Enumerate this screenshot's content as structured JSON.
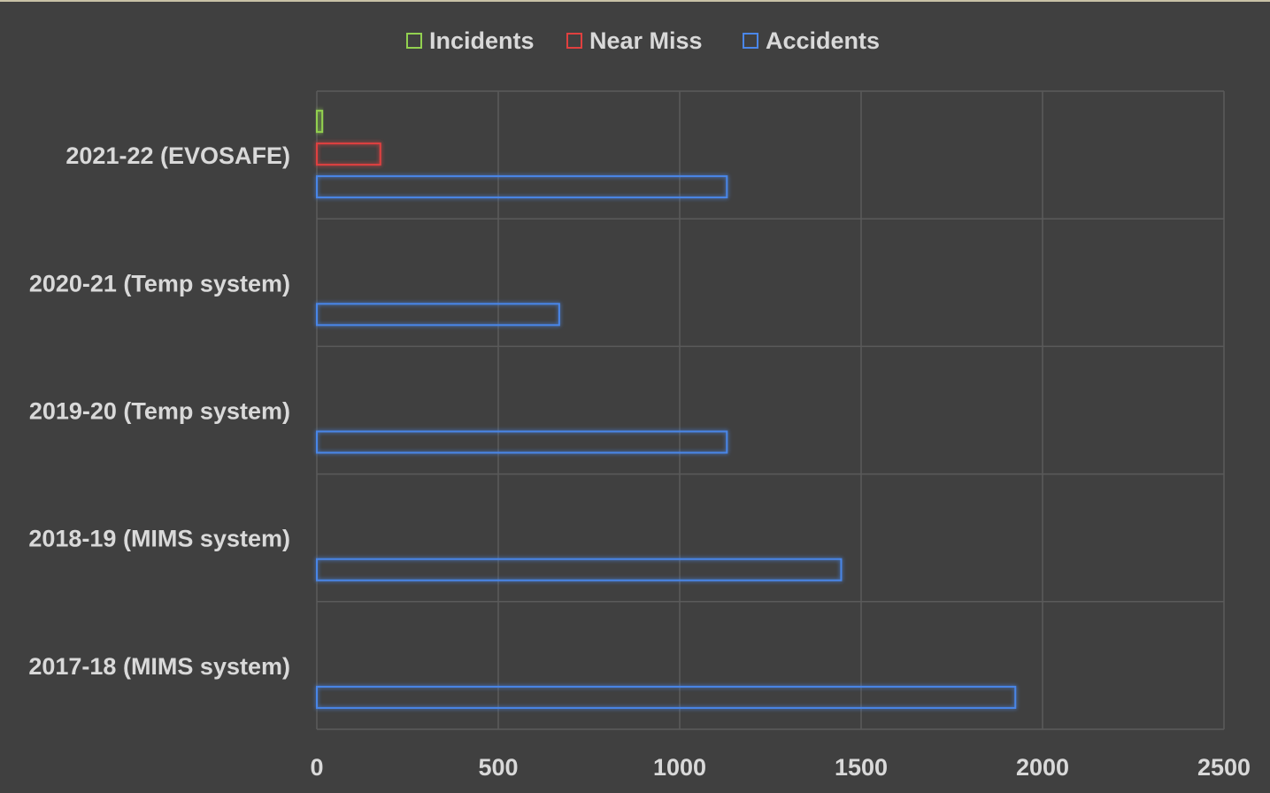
{
  "chart_data": {
    "type": "bar",
    "orientation": "horizontal",
    "title": "",
    "xlabel": "",
    "ylabel": "",
    "categories": [
      "2021-22 (EVOSAFE)",
      "2020-21 (Temp system)",
      "2019-20 (Temp system)",
      "2018-19 (MIMS system)",
      "2017-18 (MIMS system)"
    ],
    "series": [
      {
        "name": "Incidents",
        "color": "#92d050",
        "values": [
          15,
          0,
          0,
          0,
          0
        ]
      },
      {
        "name": "Near Miss",
        "color": "#e0403f",
        "values": [
          175,
          0,
          0,
          0,
          0
        ]
      },
      {
        "name": "Accidents",
        "color": "#4a86e8",
        "values": [
          1130,
          668,
          1130,
          1445,
          1925
        ]
      }
    ],
    "xlim": [
      0,
      2500
    ],
    "xticks": [
      "0",
      "500",
      "1000",
      "1500",
      "2000",
      "2500"
    ],
    "grid": true,
    "legend_position": "top-center"
  }
}
